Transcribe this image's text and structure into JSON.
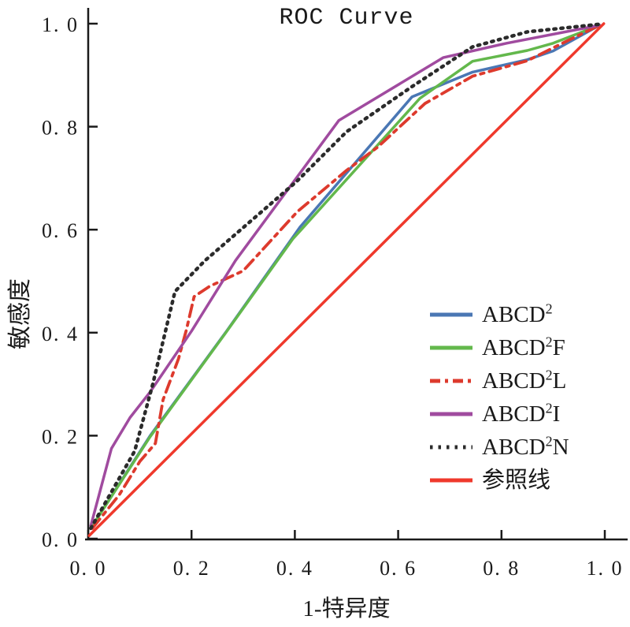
{
  "title": "ROC Curve",
  "chart_data": {
    "type": "line",
    "title": "ROC Curve",
    "xlabel": "1-特异度",
    "ylabel": "敏感度",
    "xlim": [
      0.0,
      1.0
    ],
    "ylim": [
      0.0,
      1.0
    ],
    "x_tick_labels": [
      "0. 0",
      "0. 2",
      "0. 4",
      "0. 6",
      "0. 8",
      "1. 0"
    ],
    "y_tick_labels": [
      "0. 0",
      "0. 2",
      "0. 4",
      "0. 6",
      "0. 8",
      "1. 0"
    ],
    "grid": false,
    "legend_position": "inside-lower-right",
    "series": [
      {
        "name": "ABCD²",
        "label_base": "ABCD",
        "label_sup": "2",
        "label_suffix": "",
        "color": "#4a77b4",
        "line_style": "solid",
        "points": [
          [
            0.005,
            0.02
          ],
          [
            0.12,
            0.2
          ],
          [
            0.268,
            0.403
          ],
          [
            0.41,
            0.605
          ],
          [
            0.627,
            0.858
          ],
          [
            0.744,
            0.906
          ],
          [
            0.85,
            0.93
          ],
          [
            0.9,
            0.947
          ],
          [
            0.99,
            0.997
          ]
        ]
      },
      {
        "name": "ABCD²F",
        "label_base": "ABCD",
        "label_sup": "2",
        "label_suffix": "F",
        "color": "#63b84c",
        "line_style": "solid",
        "points": [
          [
            0.005,
            0.02
          ],
          [
            0.12,
            0.198
          ],
          [
            0.265,
            0.398
          ],
          [
            0.396,
            0.582
          ],
          [
            0.642,
            0.855
          ],
          [
            0.744,
            0.927
          ],
          [
            0.85,
            0.948
          ],
          [
            0.9,
            0.962
          ],
          [
            0.99,
            0.997
          ]
        ]
      },
      {
        "name": "ABCD²L",
        "label_base": "ABCD",
        "label_sup": "2",
        "label_suffix": "L",
        "color": "#dd3a2d",
        "line_style": "dash-dot",
        "points": [
          [
            0.008,
            0.02
          ],
          [
            0.06,
            0.085
          ],
          [
            0.1,
            0.15
          ],
          [
            0.13,
            0.185
          ],
          [
            0.145,
            0.27
          ],
          [
            0.175,
            0.35
          ],
          [
            0.19,
            0.405
          ],
          [
            0.205,
            0.47
          ],
          [
            0.235,
            0.49
          ],
          [
            0.3,
            0.52
          ],
          [
            0.405,
            0.635
          ],
          [
            0.5,
            0.715
          ],
          [
            0.56,
            0.76
          ],
          [
            0.652,
            0.845
          ],
          [
            0.744,
            0.898
          ],
          [
            0.85,
            0.928
          ],
          [
            0.93,
            0.968
          ],
          [
            0.99,
            0.997
          ]
        ]
      },
      {
        "name": "ABCD²I",
        "label_base": "ABCD",
        "label_sup": "2",
        "label_suffix": "I",
        "color": "#a04b9f",
        "line_style": "solid",
        "points": [
          [
            0.005,
            0.025
          ],
          [
            0.045,
            0.175
          ],
          [
            0.081,
            0.235
          ],
          [
            0.12,
            0.285
          ],
          [
            0.2,
            0.403
          ],
          [
            0.285,
            0.54
          ],
          [
            0.485,
            0.812
          ],
          [
            0.687,
            0.934
          ],
          [
            0.81,
            0.962
          ],
          [
            0.99,
            0.997
          ]
        ]
      },
      {
        "name": "ABCD²N",
        "label_base": "ABCD",
        "label_sup": "2",
        "label_suffix": "N",
        "color": "#2b2b2b",
        "line_style": "dotted",
        "points": [
          [
            0.005,
            0.02
          ],
          [
            0.09,
            0.17
          ],
          [
            0.125,
            0.3
          ],
          [
            0.168,
            0.48
          ],
          [
            0.226,
            0.54
          ],
          [
            0.404,
            0.694
          ],
          [
            0.5,
            0.79
          ],
          [
            0.627,
            0.878
          ],
          [
            0.744,
            0.955
          ],
          [
            0.85,
            0.984
          ],
          [
            0.99,
            0.999
          ]
        ]
      },
      {
        "name": "参照线",
        "label_base": "参照线",
        "label_sup": "",
        "label_suffix": "",
        "color": "#ef392c",
        "line_style": "solid",
        "points": [
          [
            0.002,
            0.006
          ],
          [
            0.998,
            1.0
          ]
        ]
      }
    ]
  }
}
